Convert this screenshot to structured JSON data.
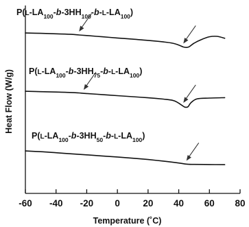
{
  "chart_data": {
    "type": "line",
    "title": "",
    "xlabel": "Temperature (˚C)",
    "ylabel": "Heat Flow (W/g)",
    "xlim": [
      -60,
      80
    ],
    "x_ticks": [
      "-60",
      "-40",
      "-20",
      "0",
      "20",
      "40",
      "60",
      "80"
    ],
    "x_tick_values": [
      -60,
      -40,
      -20,
      0,
      20,
      40,
      60,
      80
    ],
    "y_ticks": [],
    "grid": false,
    "legend": "none",
    "series": [
      {
        "name": "P(L-LA100-b-3HH100-b-L-LA100)",
        "label_parts": [
          {
            "t": "P("
          },
          {
            "t": "L",
            "c": "sc"
          },
          {
            "t": "-LA"
          },
          {
            "t": "100",
            "s": true
          },
          {
            "t": "-"
          },
          {
            "t": "b",
            "c": "it"
          },
          {
            "t": "-3HH"
          },
          {
            "t": "100",
            "s": true
          },
          {
            "t": "-"
          },
          {
            "t": "b",
            "c": "it"
          },
          {
            "t": "-"
          },
          {
            "t": "L",
            "c": "sc"
          },
          {
            "t": "-LA"
          },
          {
            "t": "100",
            "s": true
          },
          {
            "t": ")"
          }
        ],
        "x": [
          -60,
          -50,
          -40,
          -30,
          -25,
          -20,
          -10,
          0,
          10,
          20,
          30,
          36,
          40,
          43,
          45,
          47,
          50,
          55,
          60,
          65,
          70
        ],
        "y": [
          0.9,
          0.85,
          0.79,
          0.72,
          0.64,
          0.56,
          0.4,
          0.24,
          0.08,
          -0.08,
          -0.28,
          -0.45,
          -0.7,
          -0.95,
          -1.02,
          -0.9,
          -0.45,
          0.05,
          0.4,
          0.45,
          0.2
        ]
      },
      {
        "name": "P(L-LA100-b-3HH75-b-L-LA100)",
        "label_parts": [
          {
            "t": "P("
          },
          {
            "t": "L",
            "c": "sc"
          },
          {
            "t": "-LA"
          },
          {
            "t": "100",
            "s": true
          },
          {
            "t": "-"
          },
          {
            "t": "b",
            "c": "it"
          },
          {
            "t": "-3HH"
          },
          {
            "t": "75",
            "s": true
          },
          {
            "t": "-"
          },
          {
            "t": "b",
            "c": "it"
          },
          {
            "t": "-"
          },
          {
            "t": "L",
            "c": "sc"
          },
          {
            "t": "-LA"
          },
          {
            "t": "100",
            "s": true
          },
          {
            "t": ")"
          }
        ],
        "x": [
          -60,
          -50,
          -40,
          -30,
          -25,
          -20,
          -10,
          0,
          10,
          20,
          30,
          36,
          39,
          42,
          44,
          46,
          48,
          52,
          60,
          70
        ],
        "y": [
          0.9,
          0.85,
          0.8,
          0.74,
          0.68,
          0.6,
          0.46,
          0.32,
          0.18,
          0.04,
          -0.14,
          -0.3,
          -0.55,
          -0.95,
          -1.2,
          -1.15,
          -0.6,
          -0.1,
          0.0,
          0.05
        ]
      },
      {
        "name": "P(L-LA100-b-3HH50-b-L-LA100)",
        "label_parts": [
          {
            "t": "P("
          },
          {
            "t": "L",
            "c": "sc"
          },
          {
            "t": "-LA"
          },
          {
            "t": "100",
            "s": true
          },
          {
            "t": "-"
          },
          {
            "t": "b",
            "c": "it"
          },
          {
            "t": "-3HH"
          },
          {
            "t": "50",
            "s": true
          },
          {
            "t": "-"
          },
          {
            "t": "b",
            "c": "it"
          },
          {
            "t": "-"
          },
          {
            "t": "L",
            "c": "sc"
          },
          {
            "t": "-LA"
          },
          {
            "t": "100",
            "s": true
          },
          {
            "t": ")"
          }
        ],
        "x": [
          -60,
          -50,
          -40,
          -30,
          -20,
          -10,
          0,
          10,
          20,
          30,
          40,
          45,
          50,
          60,
          70
        ],
        "y": [
          0.9,
          0.8,
          0.66,
          0.52,
          0.38,
          0.24,
          0.1,
          -0.06,
          -0.24,
          -0.45,
          -0.7,
          -0.85,
          -0.88,
          -0.9,
          -0.92
        ]
      }
    ],
    "annotations": [
      {
        "series": 0,
        "type": "arrow",
        "x": -25
      },
      {
        "series": 0,
        "type": "arrow",
        "x": 43
      },
      {
        "series": 1,
        "type": "arrow",
        "x": -22
      },
      {
        "series": 1,
        "type": "arrow",
        "x": 43
      },
      {
        "series": 2,
        "type": "arrow",
        "x": 45
      }
    ]
  }
}
